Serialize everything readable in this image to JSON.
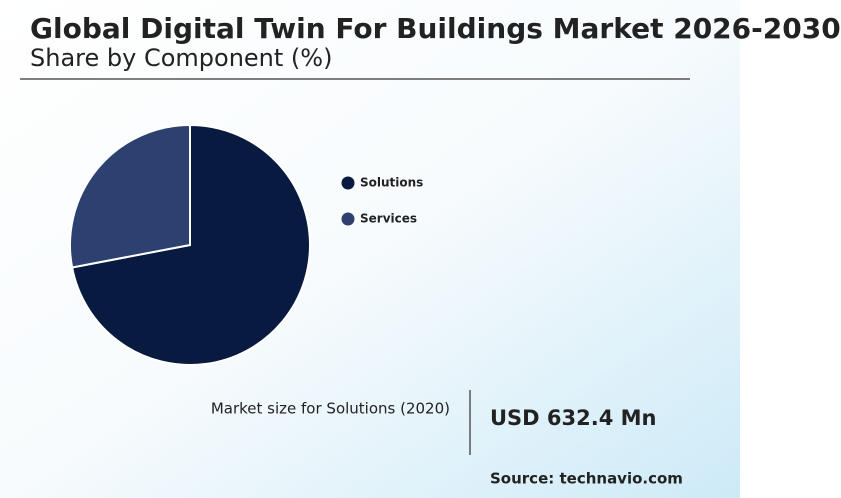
{
  "chart_data": {
    "type": "pie",
    "title": "Global Digital Twin For Buildings Market 2026-2030",
    "subtitle": "Share by Component (%)",
    "categories": [
      "Solutions",
      "Services"
    ],
    "values": [
      72,
      28
    ],
    "colors": [
      "#081a40",
      "#2c4170"
    ],
    "market_size_label": "Market size for Solutions (2020)",
    "market_size_value": "USD 632.4 Mn",
    "source": "Source: technavio.com"
  }
}
